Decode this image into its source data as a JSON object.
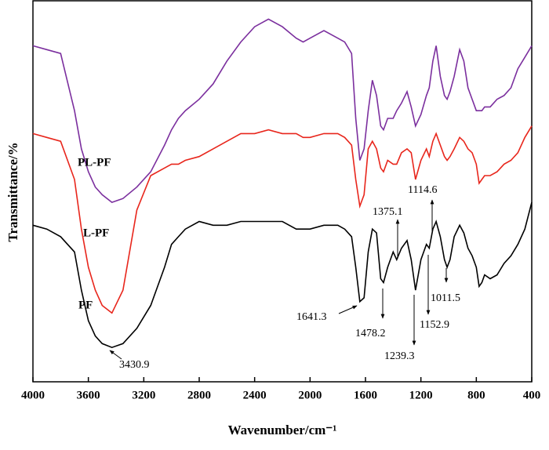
{
  "chart_data": {
    "type": "line",
    "xlabel": "Wavenumber/cm⁻¹",
    "ylabel": "Transmittance/%",
    "xlim": [
      4000,
      400
    ],
    "ylim": [
      0,
      100
    ],
    "xticks": [
      4000,
      3600,
      3200,
      2800,
      2400,
      2000,
      1600,
      1200,
      800,
      400
    ],
    "x": [
      4000,
      3900,
      3800,
      3700,
      3650,
      3600,
      3550,
      3500,
      3430,
      3350,
      3250,
      3150,
      3050,
      3000,
      2950,
      2900,
      2800,
      2700,
      2600,
      2500,
      2400,
      2300,
      2200,
      2100,
      2050,
      2000,
      1900,
      1800,
      1750,
      1700,
      1670,
      1641,
      1610,
      1580,
      1550,
      1520,
      1490,
      1470,
      1440,
      1400,
      1375,
      1340,
      1300,
      1270,
      1239,
      1200,
      1160,
      1140,
      1114,
      1090,
      1060,
      1030,
      1011,
      990,
      960,
      920,
      890,
      860,
      830,
      800,
      780,
      760,
      740,
      700,
      650,
      600,
      550,
      500,
      450,
      400
    ],
    "series": [
      {
        "name": "PF",
        "color": "#000000",
        "values": [
          41,
          40,
          38,
          34,
          24,
          16,
          12,
          10,
          9,
          10,
          14,
          20,
          30,
          36,
          38,
          40,
          42,
          41,
          41,
          42,
          42,
          42,
          42,
          40,
          40,
          40,
          41,
          41,
          40,
          38,
          30,
          21,
          22,
          34,
          40,
          39,
          27,
          26,
          30,
          34,
          32,
          35,
          37,
          32,
          24,
          32,
          36,
          35,
          40,
          42,
          38,
          32,
          30,
          32,
          38,
          41,
          39,
          35,
          33,
          30,
          25,
          26,
          28,
          27,
          28,
          31,
          33,
          36,
          40,
          47
        ]
      },
      {
        "name": "L-PF",
        "color": "#e8261c",
        "values": [
          65,
          64,
          63,
          53,
          40,
          30,
          24,
          20,
          18,
          24,
          45,
          54,
          56,
          57,
          57,
          58,
          59,
          61,
          63,
          65,
          65,
          66,
          65,
          65,
          64,
          64,
          65,
          65,
          64,
          62,
          53,
          46,
          49,
          61,
          63,
          61,
          56,
          55,
          58,
          57,
          57,
          60,
          61,
          60,
          53,
          58,
          61,
          59,
          63,
          65,
          62,
          59,
          58,
          59,
          61,
          64,
          63,
          61,
          60,
          57,
          52,
          53,
          54,
          54,
          55,
          57,
          58,
          60,
          64,
          67
        ]
      },
      {
        "name": "PL-PF",
        "color": "#7b2f9e",
        "values": [
          88,
          87,
          86,
          71,
          61,
          55,
          51,
          49,
          47,
          48,
          51,
          55,
          62,
          66,
          69,
          71,
          74,
          78,
          84,
          89,
          93,
          95,
          93,
          90,
          89,
          90,
          92,
          90,
          89,
          86,
          69,
          58,
          61,
          71,
          79,
          75,
          67,
          66,
          69,
          69,
          71,
          73,
          76,
          72,
          67,
          70,
          75,
          77,
          84,
          88,
          80,
          75,
          74,
          76,
          80,
          87,
          84,
          77,
          74,
          71,
          71,
          71,
          72,
          72,
          74,
          75,
          77,
          82,
          85,
          88
        ]
      }
    ],
    "annotations": [
      "3430.9",
      "1641.3",
      "1478.2",
      "1375.1",
      "1239.3",
      "1152.9",
      "1114.6",
      "1011.5"
    ]
  }
}
